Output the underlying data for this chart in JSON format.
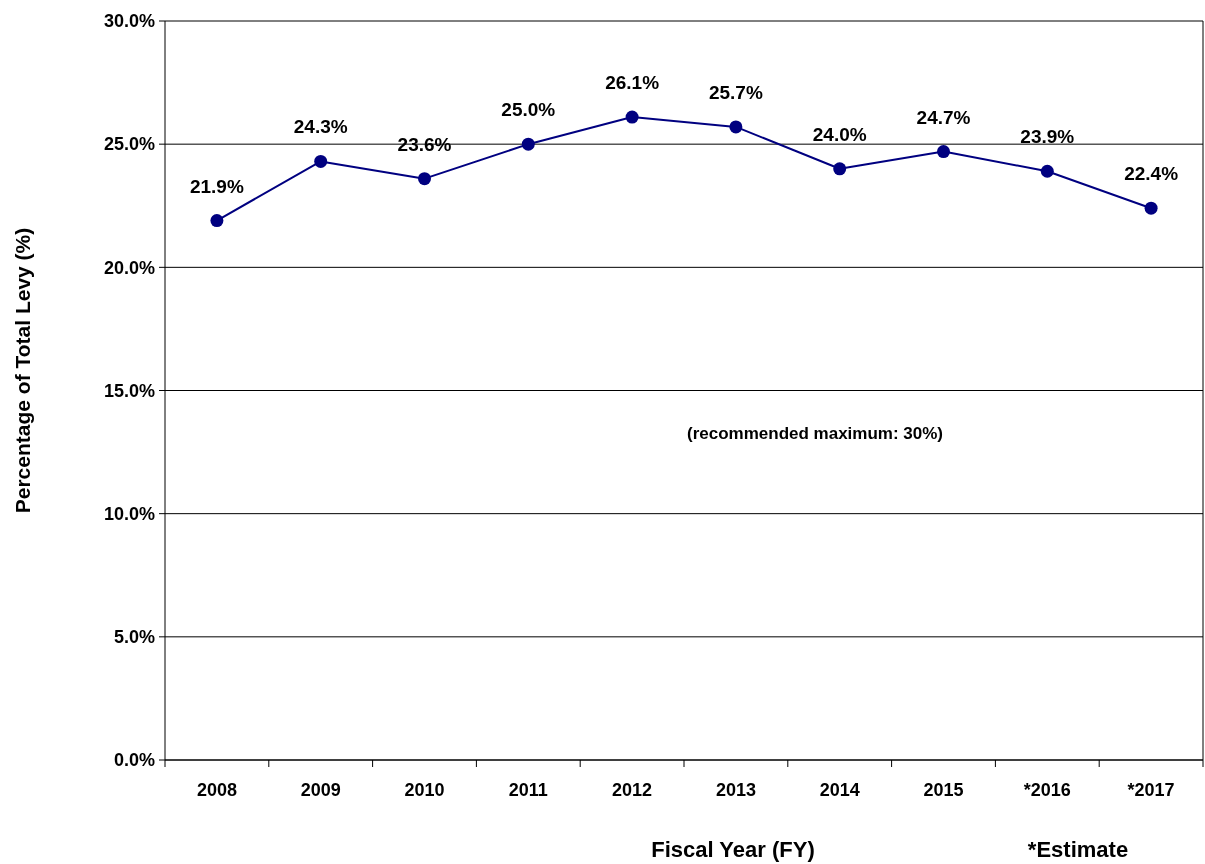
{
  "chart_data": {
    "type": "line",
    "categories": [
      "2008",
      "2009",
      "2010",
      "2011",
      "2012",
      "2013",
      "2014",
      "2015",
      "*2016",
      "*2017"
    ],
    "series": [
      {
        "color": "#000080",
        "values": [
          21.9,
          24.3,
          23.6,
          25.0,
          26.1,
          25.7,
          24.0,
          24.7,
          23.9,
          22.4
        ],
        "value_labels": [
          "21.9%",
          "24.3%",
          "23.6%",
          "25.0%",
          "26.1%",
          "25.7%",
          "24.0%",
          "24.7%",
          "23.9%",
          "22.4%"
        ]
      }
    ],
    "xlabel": "Fiscal Year (FY)",
    "ylabel": "Percentage of Total Levy (%)",
    "ylim": [
      0,
      30
    ],
    "yticks": [
      {
        "value": 0,
        "label": "0.0%"
      },
      {
        "value": 5,
        "label": "5.0%"
      },
      {
        "value": 10,
        "label": "10.0%"
      },
      {
        "value": 15,
        "label": "15.0%"
      },
      {
        "value": 20,
        "label": "20.0%"
      },
      {
        "value": 25,
        "label": "25.0%"
      },
      {
        "value": 30,
        "label": "30.0%"
      }
    ],
    "grid": "y",
    "marker": "circle",
    "line_style": "solid",
    "annotations": [
      "(recommended maximum: 30%)",
      "*Estimate"
    ]
  }
}
